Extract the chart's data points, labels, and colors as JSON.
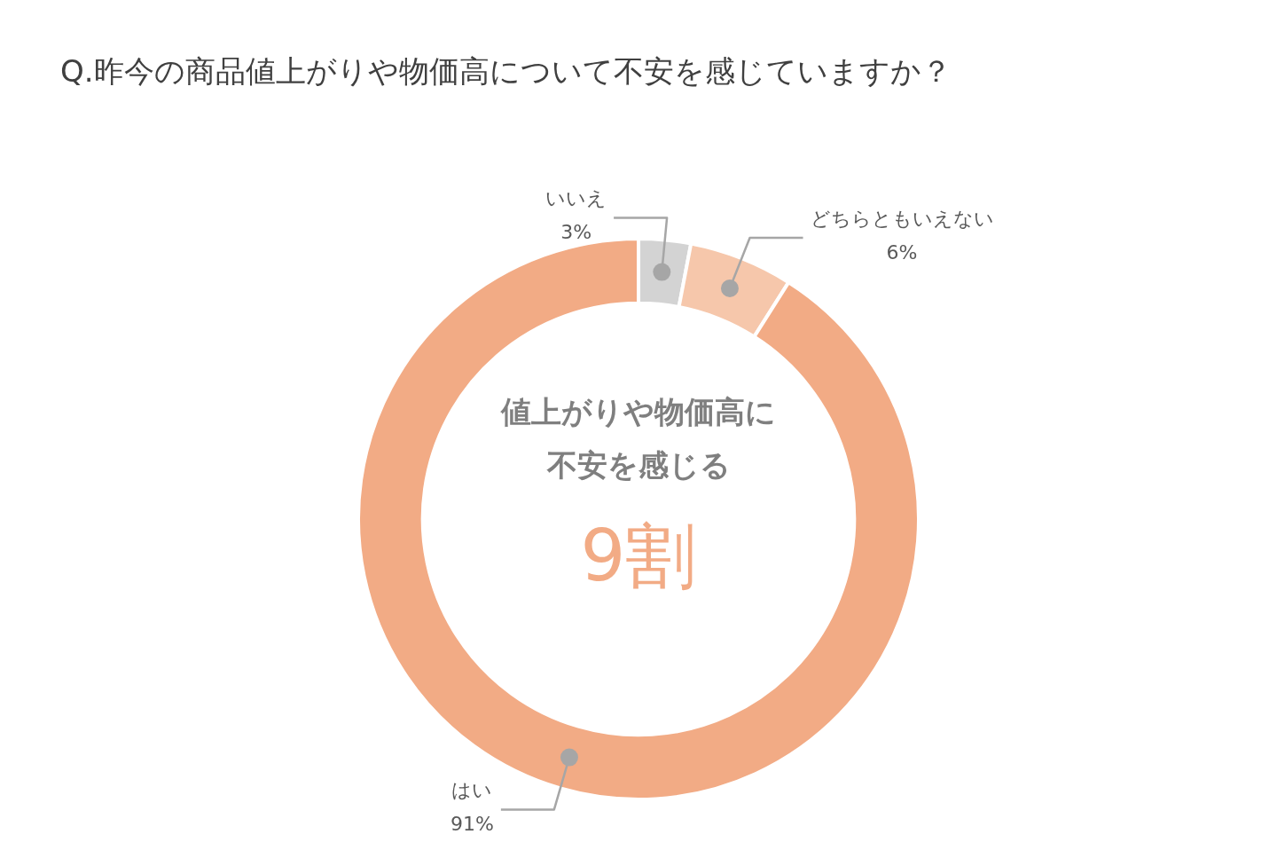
{
  "chart_data": {
    "type": "donut",
    "title": "Q.昨今の商品値上がりや物価高について不安を感じていますか？",
    "categories": [
      "いいえ",
      "どちらともいえない",
      "はい"
    ],
    "values": [
      3,
      6,
      91
    ],
    "colors": [
      "#d3d3d3",
      "#f6c7ab",
      "#f2ab85"
    ],
    "value_labels": [
      "3%",
      "6%",
      "91%"
    ],
    "annotations": [
      "値上がりや物価高に不安を感じる",
      "9割"
    ],
    "legend": false
  }
}
